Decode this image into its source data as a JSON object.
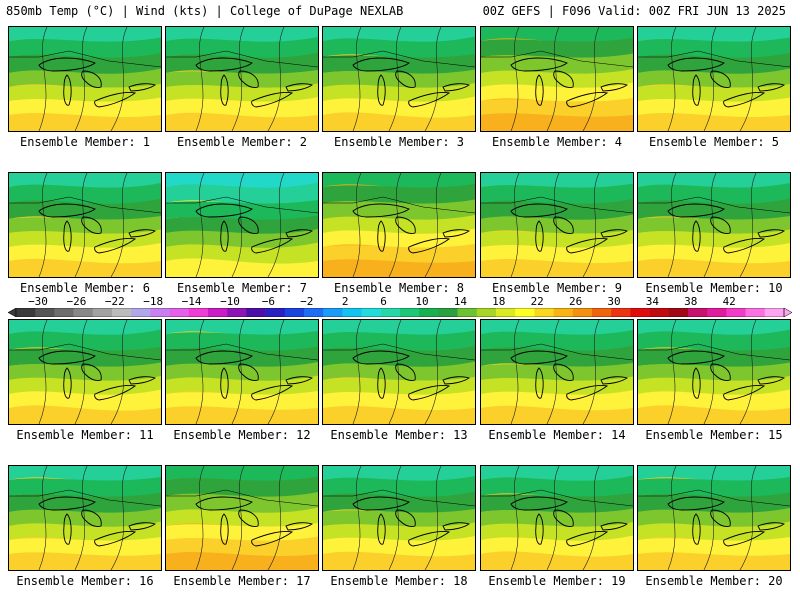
{
  "header": {
    "left": "850mb Temp (°C) | Wind (kts) | College of DuPage NEXLAB",
    "right": "00Z GEFS | F096 Valid: 00Z FRI JUN 13 2025"
  },
  "label_prefix": "Ensemble Member: ",
  "members": [
    {
      "label": "Ensemble Member: 1",
      "warmth": 0.45
    },
    {
      "label": "Ensemble Member: 2",
      "warmth": 0.4
    },
    {
      "label": "Ensemble Member: 3",
      "warmth": 0.55
    },
    {
      "label": "Ensemble Member: 4",
      "warmth": 0.7
    },
    {
      "label": "Ensemble Member: 5",
      "warmth": 0.6
    },
    {
      "label": "Ensemble Member: 6",
      "warmth": 0.45
    },
    {
      "label": "Ensemble Member: 7",
      "warmth": 0.3
    },
    {
      "label": "Ensemble Member: 8",
      "warmth": 0.65
    },
    {
      "label": "Ensemble Member: 9",
      "warmth": 0.5
    },
    {
      "label": "Ensemble Member: 10",
      "warmth": 0.45
    },
    {
      "label": "Ensemble Member: 11",
      "warmth": 0.45
    },
    {
      "label": "Ensemble Member: 12",
      "warmth": 0.6
    },
    {
      "label": "Ensemble Member: 13",
      "warmth": 0.55
    },
    {
      "label": "Ensemble Member: 14",
      "warmth": 0.6
    },
    {
      "label": "Ensemble Member: 15",
      "warmth": 0.6
    },
    {
      "label": "Ensemble Member: 16",
      "warmth": 0.4
    },
    {
      "label": "Ensemble Member: 17",
      "warmth": 0.7
    },
    {
      "label": "Ensemble Member: 18",
      "warmth": 0.55
    },
    {
      "label": "Ensemble Member: 19",
      "warmth": 0.5
    },
    {
      "label": "Ensemble Member: 20",
      "warmth": 0.55
    }
  ],
  "colorbar": {
    "unit": "°C",
    "ticks": [
      "−30",
      "−26",
      "−22",
      "−18",
      "−14",
      "−10",
      "−6",
      "−2",
      "2",
      "6",
      "10",
      "14",
      "18",
      "22",
      "26",
      "30",
      "34",
      "38",
      "42"
    ],
    "colors": [
      "#3a3a3a",
      "#555555",
      "#6e6e6e",
      "#888888",
      "#a2a2a2",
      "#bcbcbc",
      "#b0a6e8",
      "#c97ff0",
      "#e45fea",
      "#f03cd6",
      "#c91cc7",
      "#8c14b4",
      "#4b0ea8",
      "#2820c0",
      "#1a44e0",
      "#1e6ef5",
      "#1c9cf6",
      "#13c4f0",
      "#22dcdc",
      "#26d8a8",
      "#1cc878",
      "#18b050",
      "#2aa040",
      "#6cc232",
      "#a8d626",
      "#dcea22",
      "#ffff26",
      "#fbd81e",
      "#f8b414",
      "#f69010",
      "#f0640e",
      "#ec3410",
      "#e00c0c",
      "#c00a10",
      "#a00816",
      "#c8106c",
      "#e01c9c",
      "#f23cc8",
      "#fa72e2",
      "#ffa4f0"
    ]
  }
}
